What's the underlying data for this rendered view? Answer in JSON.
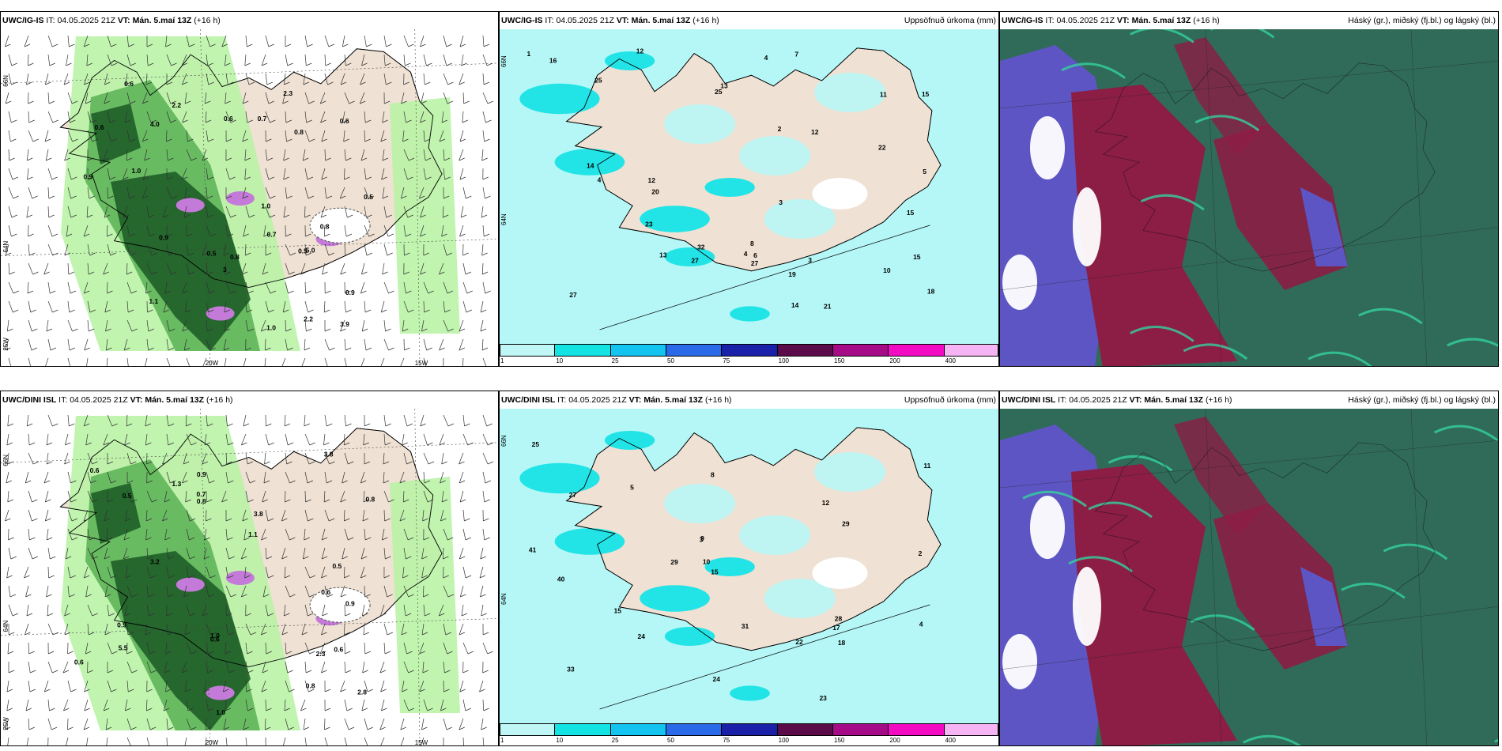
{
  "colors": {
    "land": "#efe1d3",
    "precip_light": "#b9f3a6",
    "precip_mid": "#5fb55a",
    "precip_dark": "#1e5e28",
    "snow_purple": "#c47ad8",
    "precip_sea": "#b5f7f7",
    "precip_cyan": "#22e4e6",
    "cloud_red": "#8c1d45",
    "cloud_blue": "#5d55c3",
    "cloud_green": "#2f6b58",
    "cloud_teal": "#35d29c"
  },
  "panels": [
    {
      "id": "p1",
      "model": "UWC/IG-IS",
      "it_label": "IT:",
      "it": "04.05.2025 21Z",
      "vt_label": "VT:",
      "vt": "Mán. 5.maí 13Z",
      "lead": "(+16 h)",
      "right": "",
      "type": "wind",
      "axis": {
        "lat_top": "66N",
        "lat_bot": "64N",
        "lon_l": "25W",
        "lon_m": "20W",
        "lon_r": "15W"
      },
      "values": [
        {
          "t": "1.0"
        },
        {
          "t": "0.9"
        },
        {
          "t": "0.5"
        },
        {
          "t": "0.7"
        },
        {
          "t": "0.6"
        },
        {
          "t": "0.8"
        },
        {
          "t": "1.0"
        },
        {
          "t": "0.6"
        },
        {
          "t": "0.5"
        },
        {
          "t": "0.8"
        },
        {
          "t": "0.9"
        },
        {
          "t": "0.6"
        },
        {
          "t": "0.7"
        },
        {
          "t": "0.8"
        },
        {
          "t": "2.2"
        },
        {
          "t": "1.1"
        },
        {
          "t": "3.9"
        },
        {
          "t": "4.0"
        },
        {
          "t": "2.2"
        },
        {
          "t": "2.3"
        },
        {
          "t": "0.9"
        },
        {
          "t": "3"
        },
        {
          "t": "0.6"
        },
        {
          "t": "0.5"
        },
        {
          "t": "5.0"
        },
        {
          "t": "1.0"
        }
      ]
    },
    {
      "id": "p2",
      "model": "UWC/IG-IS",
      "it_label": "IT:",
      "it": "04.05.2025 21Z",
      "vt_label": "VT:",
      "vt": "Mán. 5.maí 13Z",
      "lead": "(+16 h)",
      "right": "Uppsöfnuð úrkoma (mm)",
      "type": "precip",
      "axis": {
        "lat_top": "66N",
        "lat_bot": "64N"
      },
      "colorbar": [
        "1",
        "10",
        "25",
        "50",
        "75",
        "100",
        "150",
        "200",
        "400"
      ],
      "values": [
        {
          "t": "10"
        },
        {
          "t": "15"
        },
        {
          "t": "8"
        },
        {
          "t": "4"
        },
        {
          "t": "3"
        },
        {
          "t": "12"
        },
        {
          "t": "21"
        },
        {
          "t": "18"
        },
        {
          "t": "25"
        },
        {
          "t": "19"
        },
        {
          "t": "14"
        },
        {
          "t": "12"
        },
        {
          "t": "7"
        },
        {
          "t": "4"
        },
        {
          "t": "32"
        },
        {
          "t": "27"
        },
        {
          "t": "25"
        },
        {
          "t": "11"
        },
        {
          "t": "13"
        },
        {
          "t": "12"
        },
        {
          "t": "15"
        },
        {
          "t": "14"
        },
        {
          "t": "23"
        },
        {
          "t": "16"
        },
        {
          "t": "27"
        },
        {
          "t": "22"
        },
        {
          "t": "13"
        },
        {
          "t": "15"
        },
        {
          "t": "20"
        },
        {
          "t": "27"
        },
        {
          "t": "6"
        },
        {
          "t": "5"
        },
        {
          "t": "2"
        },
        {
          "t": "3"
        },
        {
          "t": "4"
        },
        {
          "t": "1"
        }
      ]
    },
    {
      "id": "p3",
      "model": "UWC/IG-IS",
      "it_label": "IT:",
      "it": "04.05.2025 21Z",
      "vt_label": "VT:",
      "vt": "Mán. 5.maí 13Z",
      "lead": "(+16 h)",
      "right": "Háský (gr.), miðský (fj.bl.) og lágský (bl.)",
      "type": "cloud"
    },
    {
      "id": "p4",
      "model": "UWC/DINI ISL",
      "it_label": "IT:",
      "it": "04.05.2025 21Z",
      "vt_label": "VT:",
      "vt": "Mán. 5.maí 13Z",
      "lead": "(+16 h)",
      "right": "",
      "type": "wind",
      "axis": {
        "lat_top": "66N",
        "lat_bot": "64N",
        "lon_l": "25W",
        "lon_m": "20W",
        "lon_r": "15W"
      },
      "values": [
        {
          "t": "0.6"
        },
        {
          "t": "3.8"
        },
        {
          "t": "1.0"
        },
        {
          "t": "0.6"
        },
        {
          "t": "0.7"
        },
        {
          "t": "1.1"
        },
        {
          "t": "0.5"
        },
        {
          "t": "0.8"
        },
        {
          "t": "0.9"
        },
        {
          "t": "0.6"
        },
        {
          "t": "0.5"
        },
        {
          "t": "1.0"
        },
        {
          "t": "0.6"
        },
        {
          "t": "0.8"
        },
        {
          "t": "0.9"
        },
        {
          "t": "3.2"
        },
        {
          "t": "2.8"
        },
        {
          "t": "0.8"
        },
        {
          "t": "3.8"
        },
        {
          "t": "2.3"
        },
        {
          "t": "0.9"
        },
        {
          "t": "0.6"
        },
        {
          "t": "1.3"
        },
        {
          "t": "5.5"
        }
      ]
    },
    {
      "id": "p5",
      "model": "UWC/DINI ISL",
      "it_label": "IT:",
      "it": "04.05.2025 21Z",
      "vt_label": "VT:",
      "vt": "Mán. 5.maí 13Z",
      "lead": "(+16 h)",
      "right": "Uppsöfnuð úrkoma (mm)",
      "type": "precip",
      "axis": {
        "lat_top": "66N",
        "lat_bot": "64N"
      },
      "colorbar": [
        "1",
        "10",
        "25",
        "50",
        "75",
        "100",
        "150",
        "200",
        "400"
      ],
      "values": [
        {
          "t": "9"
        },
        {
          "t": "11"
        },
        {
          "t": "8"
        },
        {
          "t": "15"
        },
        {
          "t": "25"
        },
        {
          "t": "24"
        },
        {
          "t": "27"
        },
        {
          "t": "24"
        },
        {
          "t": "15"
        },
        {
          "t": "10"
        },
        {
          "t": "40"
        },
        {
          "t": "29"
        },
        {
          "t": "31"
        },
        {
          "t": "18"
        },
        {
          "t": "17"
        },
        {
          "t": "12"
        },
        {
          "t": "22"
        },
        {
          "t": "23"
        },
        {
          "t": "29"
        },
        {
          "t": "33"
        },
        {
          "t": "41"
        },
        {
          "t": "28"
        },
        {
          "t": "3"
        },
        {
          "t": "2"
        },
        {
          "t": "5"
        },
        {
          "t": "4"
        }
      ]
    },
    {
      "id": "p6",
      "model": "UWC/DINI ISL",
      "it_label": "IT:",
      "it": "04.05.2025 21Z",
      "vt_label": "VT:",
      "vt": "Mán. 5.maí 13Z",
      "lead": "(+16 h)",
      "right": "Háský (gr.), miðský (fj.bl.) og lágský (bl.)",
      "type": "cloud"
    }
  ]
}
